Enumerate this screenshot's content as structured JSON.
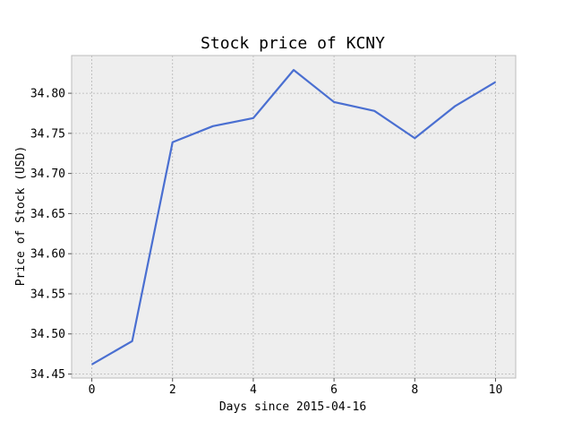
{
  "chart_data": {
    "type": "line",
    "title": "Stock price of KCNY",
    "xlabel": "Days since 2015-04-16",
    "ylabel": "Price of Stock (USD)",
    "x": [
      0,
      1,
      2,
      3,
      4,
      5,
      6,
      7,
      8,
      9,
      10
    ],
    "series": [
      {
        "values": [
          34.462,
          34.491,
          34.739,
          34.759,
          34.769,
          34.829,
          34.789,
          34.778,
          34.744,
          34.784,
          34.814
        ]
      }
    ],
    "xlim": [
      -0.5,
      10.5
    ],
    "ylim": [
      34.445,
      34.847
    ],
    "xticks": [
      0,
      2,
      4,
      6,
      8,
      10
    ],
    "xtick_labels": [
      "0",
      "2",
      "4",
      "6",
      "8",
      "10"
    ],
    "yticks": [
      34.45,
      34.5,
      34.55,
      34.6,
      34.65,
      34.7,
      34.75,
      34.8
    ],
    "ytick_labels": [
      "34.45",
      "34.50",
      "34.55",
      "34.60",
      "34.65",
      "34.70",
      "34.75",
      "34.80"
    ],
    "grid": true,
    "colors": {
      "line": "#4a6fd1",
      "plot_bg": "#eeeeee",
      "grid": "#b5b5b5",
      "frame": "#bcbcbc"
    }
  }
}
